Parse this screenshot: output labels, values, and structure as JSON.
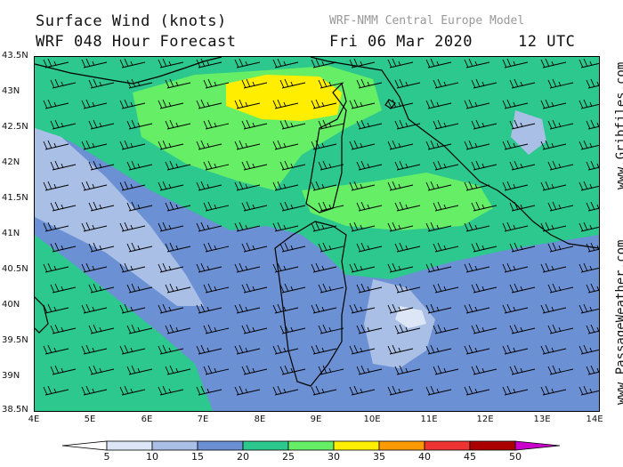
{
  "header": {
    "title_line1": "Surface Wind (knots)",
    "title_line2": "WRF 048 Hour Forecast",
    "model_name": "WRF-NMM Central Europe Model",
    "date_text": "Fri 06 Mar 2020",
    "time_text": "12 UTC"
  },
  "axes": {
    "lat_labels": [
      "43.5N",
      "43N",
      "42.5N",
      "42N",
      "41.5N",
      "41N",
      "40.5N",
      "40N",
      "39.5N",
      "39N",
      "38.5N"
    ],
    "lon_labels": [
      "4E",
      "5E",
      "6E",
      "7E",
      "8E",
      "9E",
      "10E",
      "11E",
      "12E",
      "13E",
      "14E"
    ]
  },
  "side_text": {
    "gribfiles": "www.Gribfiles.com",
    "passageweather": "www.PassageWeather.com"
  },
  "legend": {
    "labels": [
      "5",
      "10",
      "15",
      "20",
      "25",
      "30",
      "35",
      "40",
      "45",
      "50"
    ],
    "colors": [
      "#ffffff",
      "#dde6f6",
      "#a9bfe6",
      "#6b90d4",
      "#2cc88e",
      "#66ee66",
      "#ffee00",
      "#ff9a00",
      "#ee3333",
      "#aa0000",
      "#cc00cc"
    ]
  },
  "colors": {
    "land_outline": "#000000",
    "wind_15_20": "#6b90d4",
    "wind_10_15": "#a9bfe6",
    "wind_20_25": "#2cc88e",
    "wind_25_30": "#66ee66",
    "wind_30_35": "#ffee00"
  }
}
